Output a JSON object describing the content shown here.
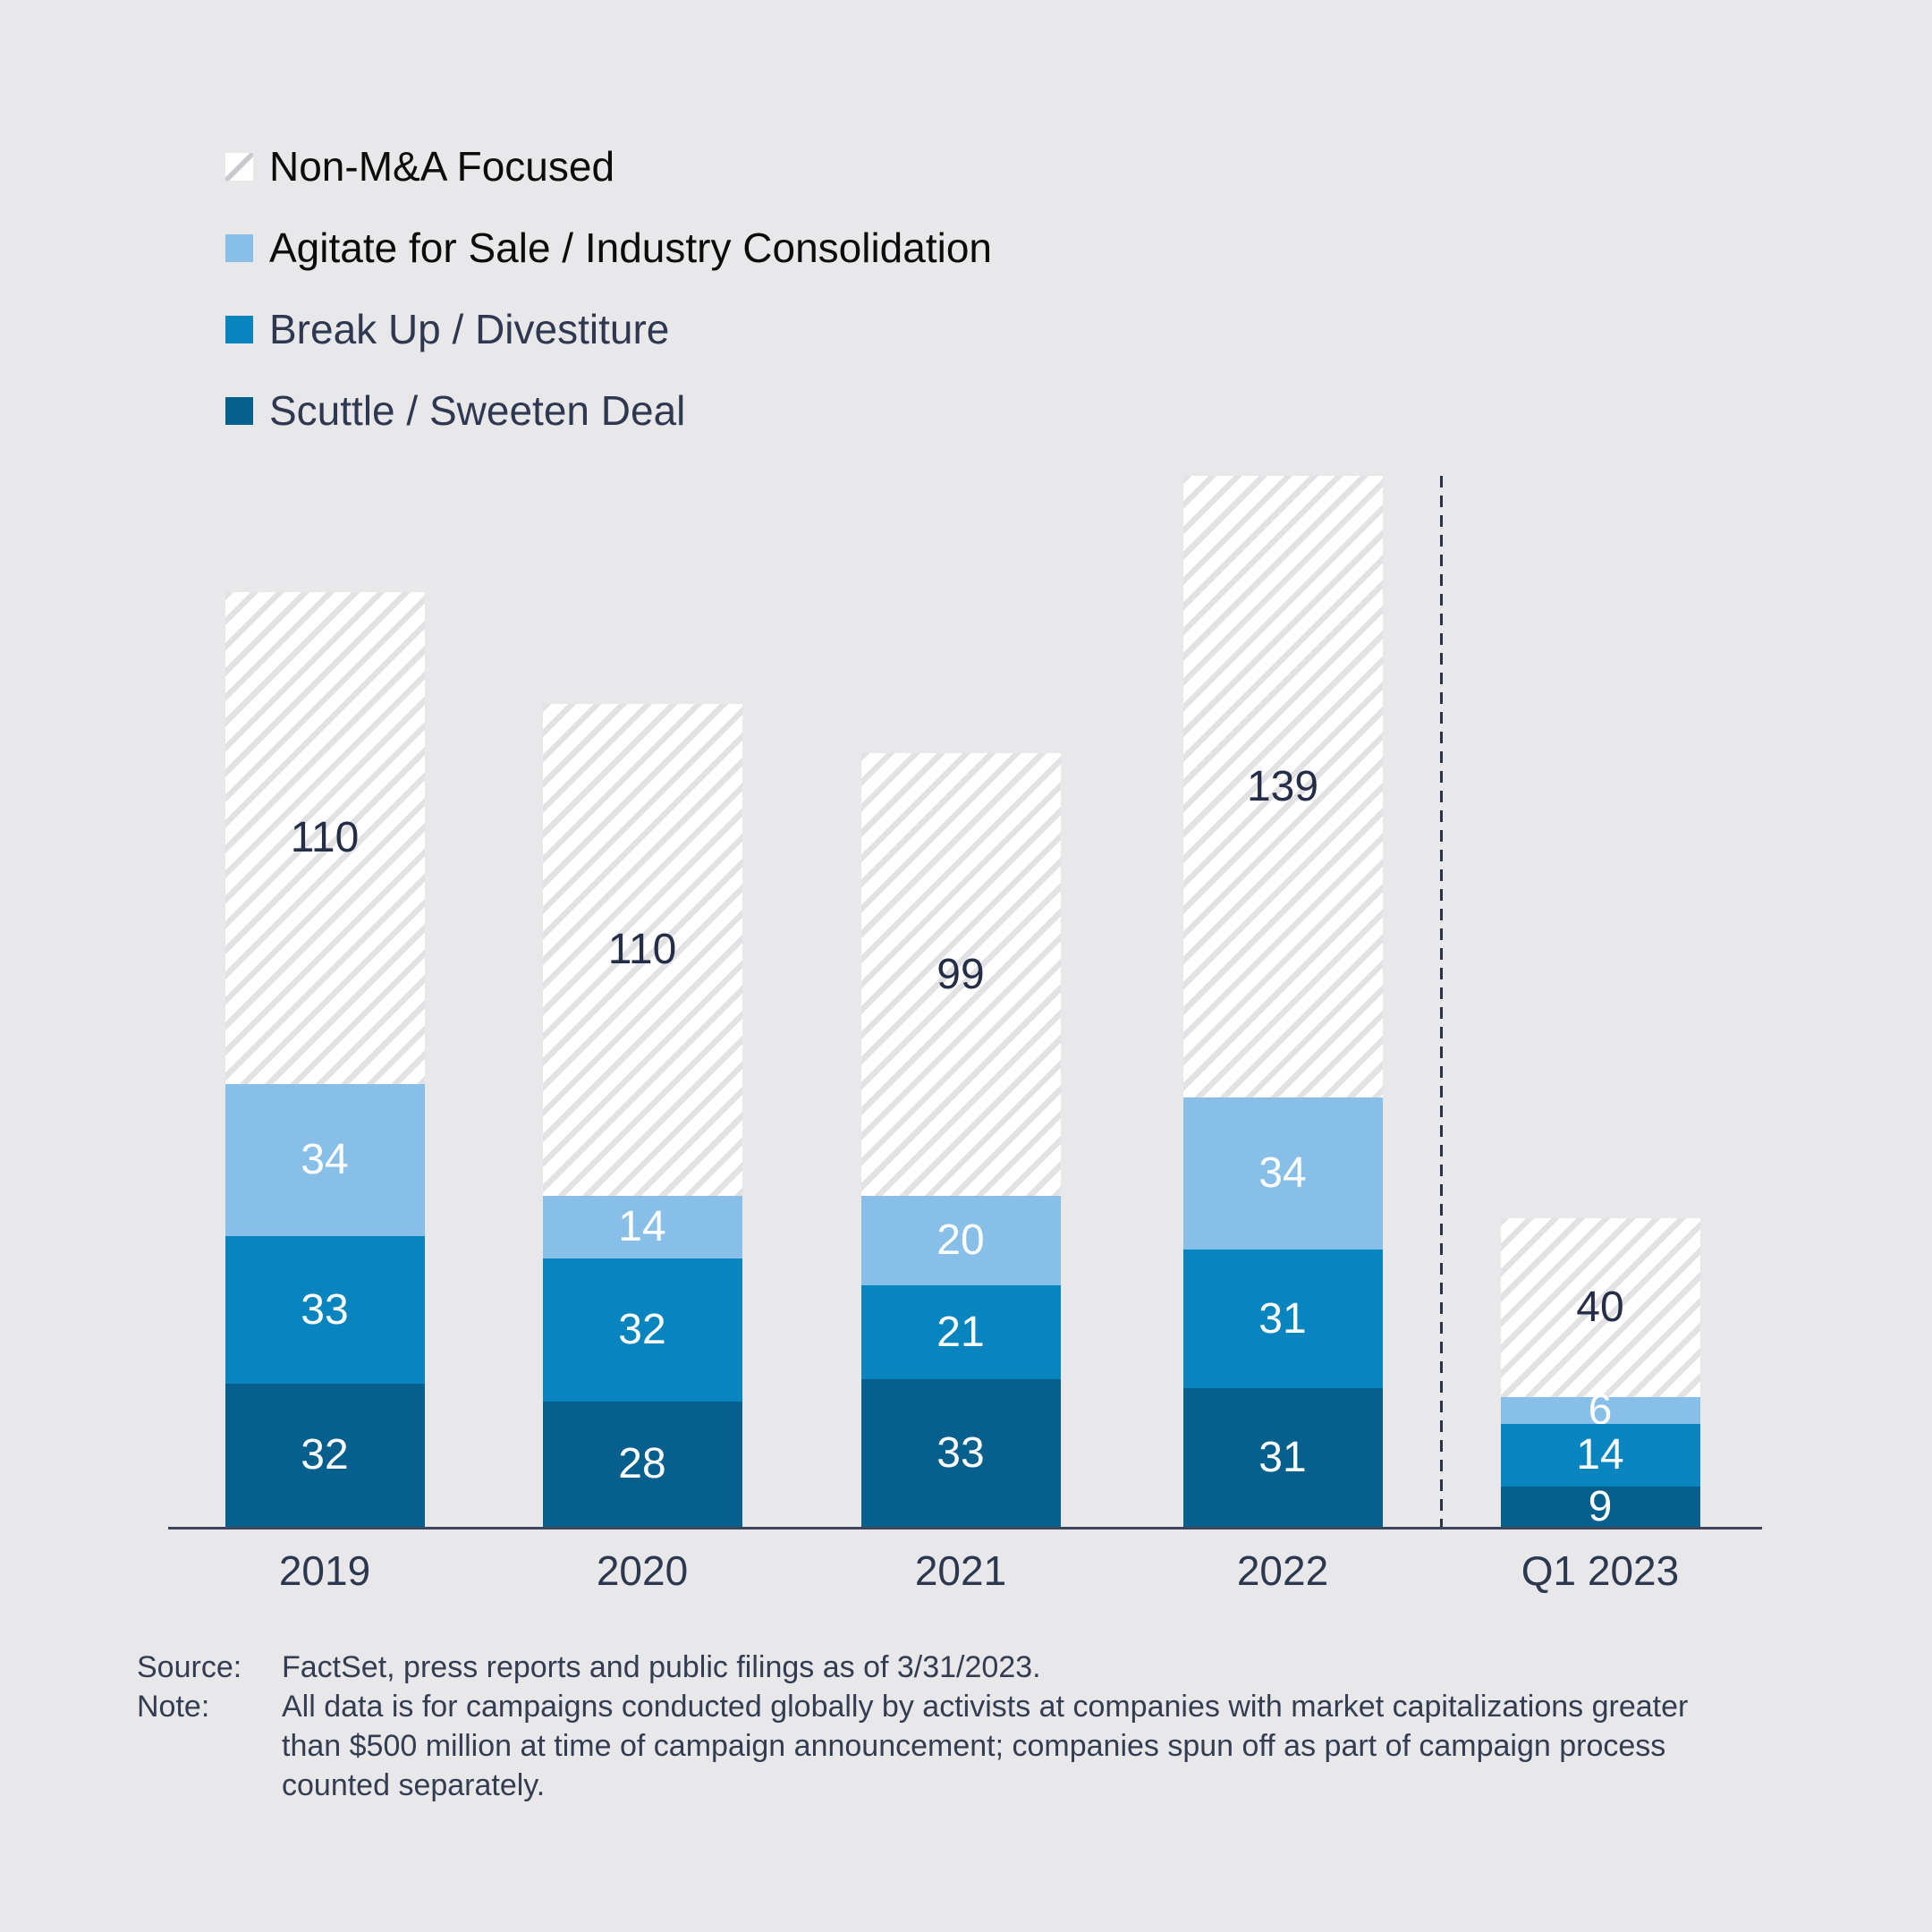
{
  "page": {
    "background": "#e8e8ea"
  },
  "chart_data": {
    "type": "bar",
    "stacked": true,
    "grid": false,
    "legend_position": "top-left",
    "y_axis_visible": false,
    "categories": [
      "2019",
      "2020",
      "2021",
      "2022",
      "Q1 2023"
    ],
    "series": [
      {
        "name": "Scuttle / Sweeten Deal",
        "color": "#075f8d",
        "value_label_color": "#ffffff",
        "legend_text_color": "#2e3850",
        "values": [
          32,
          28,
          33,
          31,
          9
        ]
      },
      {
        "name": "Break Up / Divestiture",
        "color": "#0884be",
        "value_label_color": "#ffffff",
        "legend_text_color": "#2e3850",
        "values": [
          33,
          32,
          21,
          31,
          14
        ]
      },
      {
        "name": "Agitate for Sale / Industry Consolidation",
        "color": "#87bfe9",
        "value_label_color": "#ffffff",
        "legend_text_color": "#0c0c0c",
        "values": [
          34,
          14,
          20,
          34,
          6
        ]
      },
      {
        "name": "Non-M&A Focused",
        "color": "hatch",
        "value_label_color": "#252e49",
        "legend_text_color": "#0c0c0c",
        "values": [
          110,
          110,
          99,
          139,
          40
        ]
      }
    ],
    "totals": [
      209,
      184,
      173,
      235,
      69
    ],
    "separator_after_category": "2022",
    "hatch_stripe_color": "#e2e2e4",
    "hatch_background": "#ffffff"
  },
  "footnote": {
    "source_label": "Source:",
    "source_text": "FactSet, press reports and public filings as of 3/31/2023.",
    "note_label": "Note:",
    "note_lines": [
      "All data is for campaigns conducted globally by activists at companies with market capitalizations greater",
      "than $500 million at time of campaign announcement; companies spun off as part of campaign process",
      "counted separately."
    ]
  }
}
